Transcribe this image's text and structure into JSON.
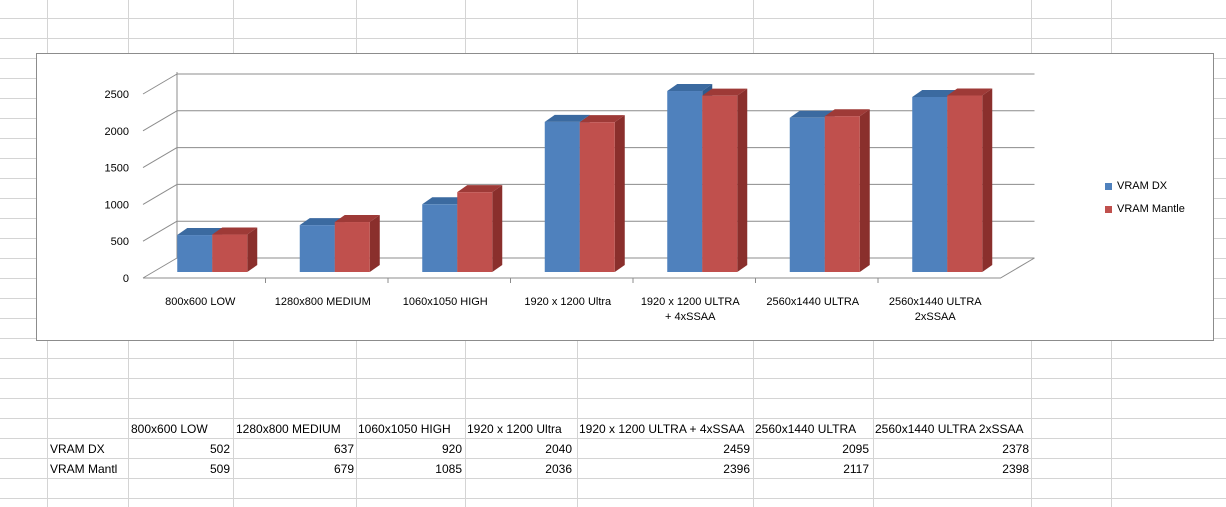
{
  "chart_data": {
    "type": "bar",
    "categories": [
      "800x600 LOW",
      "1280x800 MEDIUM",
      "1060x1050 HIGH",
      "1920 x 1200 Ultra",
      "1920 x 1200 ULTRA + 4xSSAA",
      "2560x1440 ULTRA",
      "2560x1440 ULTRA 2xSSAA"
    ],
    "category_lines": [
      [
        "800x600 LOW"
      ],
      [
        "1280x800 MEDIUM"
      ],
      [
        "1060x1050 HIGH"
      ],
      [
        "1920 x 1200 Ultra"
      ],
      [
        "1920 x 1200 ULTRA",
        "+ 4xSSAA"
      ],
      [
        "2560x1440 ULTRA"
      ],
      [
        "2560x1440 ULTRA",
        "2xSSAA"
      ]
    ],
    "series": [
      {
        "name": "VRAM DX",
        "values": [
          502,
          637,
          920,
          2040,
          2459,
          2095,
          2378
        ],
        "color": "#4f81bd",
        "side_color": "#2f5b8e",
        "top_color": "#3b6aa0"
      },
      {
        "name": "VRAM Mantle",
        "values": [
          509,
          679,
          1085,
          2036,
          2396,
          2117,
          2398
        ],
        "color": "#c0504d",
        "side_color": "#8a2f2c",
        "top_color": "#9e3a37"
      }
    ],
    "yticks": [
      0,
      500,
      1000,
      1500,
      2000,
      2500
    ],
    "ylim": [
      0,
      2500
    ],
    "title": "",
    "xlabel": "",
    "ylabel": "",
    "legend_position": "right"
  },
  "table": {
    "headers": [
      "800x600 LOW",
      "1280x800 MEDIUM",
      "1060x1050 HIGH",
      "1920 x 1200 Ultra",
      "1920 x 1200 ULTRA + 4xSSAA",
      "2560x1440 ULTRA",
      "2560x1440 ULTRA 2xSSAA"
    ],
    "rows": [
      {
        "label": "VRAM DX",
        "values": [
          "502",
          "637",
          "920",
          "2040",
          "2459",
          "2095",
          "2378"
        ]
      },
      {
        "label": "VRAM Mantl",
        "values": [
          "509",
          "679",
          "1085",
          "2036",
          "2396",
          "2117",
          "2398"
        ]
      }
    ]
  }
}
